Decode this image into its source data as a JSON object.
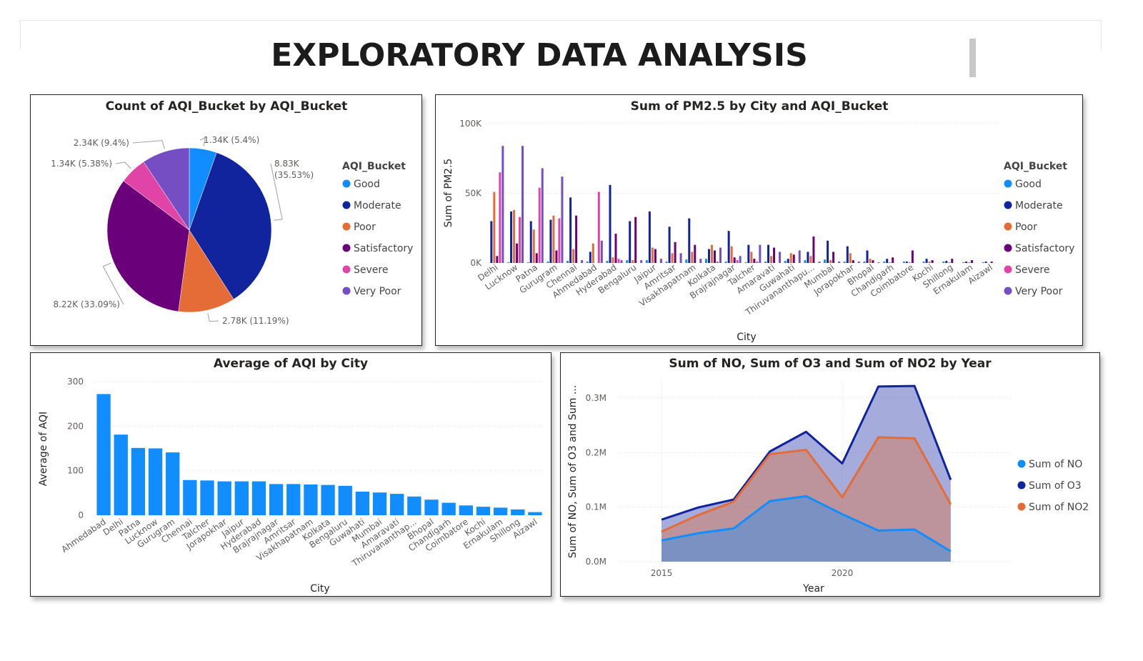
{
  "page": {
    "title": "EXPLORATORY DATA ANALYSIS"
  },
  "colors": {
    "good": "#118DFF",
    "moderate": "#12239E",
    "poor": "#E66C37",
    "satisfactory": "#6B007B",
    "severe": "#E044A7",
    "very_poor": "#744EC2",
    "bar": "#118DFF",
    "no": "#118DFF",
    "o3": "#12239E",
    "no2": "#E66C37"
  },
  "chart_data": [
    {
      "type": "pie",
      "title": "Count of AQI_Bucket by AQI_Bucket",
      "legend_title": "AQI_Bucket",
      "legend_position": "right",
      "slices": [
        {
          "name": "Good",
          "value": 1341,
          "label": "1.34K (5.4%)",
          "color_key": "good"
        },
        {
          "name": "Moderate",
          "value": 8829,
          "label": "8.83K (35.53%)",
          "color_key": "moderate"
        },
        {
          "name": "Poor",
          "value": 2781,
          "label": "2.78K (11.19%)",
          "color_key": "poor"
        },
        {
          "name": "Satisfactory",
          "value": 8224,
          "label": "8.22K (33.09%)",
          "color_key": "satisfactory"
        },
        {
          "name": "Severe",
          "value": 1338,
          "label": "1.34K (5.38%)",
          "color_key": "severe"
        },
        {
          "name": "Very Poor",
          "value": 2337,
          "label": "2.34K (9.4%)",
          "color_key": "very_poor"
        }
      ]
    },
    {
      "type": "bar",
      "title": "Sum of PM2.5 by City and AQI_Bucket",
      "xlabel": "City",
      "ylabel": "Sum of PM2.5",
      "ylim": [
        0,
        100000
      ],
      "yticks": [
        {
          "v": 0,
          "t": "0K"
        },
        {
          "v": 50000,
          "t": "50K"
        },
        {
          "v": 100000,
          "t": "100K"
        }
      ],
      "legend_title": "AQI_Bucket",
      "legend_position": "right",
      "grid": true,
      "categories": [
        "Delhi",
        "Lucknow",
        "Patna",
        "Gurugram",
        "Chennai",
        "Ahmedabad",
        "Hyderabad",
        "Bengaluru",
        "Jaipur",
        "Amritsar",
        "Visakhapatnam",
        "Kolkata",
        "Brajrajnagar",
        "Talcher",
        "Amaravati",
        "Guwahati",
        "Thiruvananthapu...",
        "Mumbai",
        "Jorapokhar",
        "Bhopal",
        "Chandigarh",
        "Coimbatore",
        "Kochi",
        "Shillong",
        "Ernakulam",
        "Aizawl"
      ],
      "series": [
        {
          "name": "Good",
          "color_key": "good",
          "values": [
            0,
            500,
            500,
            1000,
            1500,
            1000,
            1500,
            2000,
            2000,
            1000,
            2500,
            3000,
            1000,
            500,
            1000,
            1500,
            2000,
            2500,
            1000,
            1000,
            1000,
            1000,
            1000,
            1000,
            500,
            500
          ]
        },
        {
          "name": "Moderate",
          "color_key": "moderate",
          "values": [
            30000,
            37000,
            30000,
            31000,
            47000,
            8000,
            56000,
            30000,
            37000,
            26000,
            32000,
            10000,
            23000,
            13000,
            13000,
            3000,
            8000,
            16000,
            12000,
            9000,
            3000,
            1000,
            3000,
            1500,
            1000,
            1000
          ]
        },
        {
          "name": "Poor",
          "color_key": "poor",
          "values": [
            51000,
            38000,
            24000,
            34000,
            10000,
            14000,
            4000,
            2000,
            11000,
            7000,
            8000,
            13000,
            12000,
            8000,
            5000,
            7000,
            5000,
            2000,
            7000,
            3000,
            500,
            500,
            1000,
            500,
            500,
            0
          ]
        },
        {
          "name": "Satisfactory",
          "color_key": "satisfactory",
          "values": [
            5000,
            14000,
            7000,
            9000,
            34000,
            0,
            21000,
            33000,
            10000,
            15000,
            13000,
            9000,
            4000,
            3000,
            11000,
            6000,
            19000,
            8000,
            2000,
            2000,
            4000,
            9000,
            2000,
            3000,
            2000,
            1000
          ]
        },
        {
          "name": "Severe",
          "color_key": "severe",
          "values": [
            65000,
            33000,
            54000,
            32000,
            0,
            51000,
            3000,
            0,
            0,
            0,
            0,
            1000,
            2000,
            1000,
            0,
            0,
            0,
            0,
            0,
            0,
            0,
            0,
            0,
            0,
            0,
            0
          ]
        },
        {
          "name": "Very Poor",
          "color_key": "very_poor",
          "values": [
            84000,
            84000,
            68000,
            62000,
            2000,
            16000,
            2000,
            2000,
            3000,
            7000,
            3000,
            11000,
            5000,
            13000,
            8000,
            9000,
            1000,
            1000,
            1000,
            500,
            0,
            0,
            0,
            0,
            0,
            0
          ]
        }
      ]
    },
    {
      "type": "bar",
      "title": "Average of AQI by City",
      "xlabel": "City",
      "ylabel": "Average of AQI",
      "ylim": [
        0,
        300
      ],
      "yticks": [
        {
          "v": 0,
          "t": "0"
        },
        {
          "v": 100,
          "t": "100"
        },
        {
          "v": 200,
          "t": "200"
        },
        {
          "v": 300,
          "t": "300"
        }
      ],
      "grid": true,
      "categories": [
        "Ahmedabad",
        "Delhi",
        "Patna",
        "Lucknow",
        "Gurugram",
        "Chennai",
        "Talcher",
        "Jorapokhar",
        "Jaipur",
        "Hyderabad",
        "Brajrajnagar",
        "Amritsar",
        "Visakhapatnam",
        "Kolkata",
        "Bengaluru",
        "Guwahati",
        "Mumbai",
        "Amaravati",
        "Thiruvananthap...",
        "Bhopal",
        "Chandigarh",
        "Coimbatore",
        "Kochi",
        "Ernakulam",
        "Shillong",
        "Aizawl"
      ],
      "values": [
        272,
        181,
        151,
        150,
        141,
        79,
        78,
        76,
        76,
        76,
        70,
        70,
        69,
        68,
        66,
        53,
        51,
        48,
        42,
        35,
        28,
        22,
        19,
        17,
        13,
        7
      ]
    },
    {
      "type": "area",
      "title": "Sum of NO, Sum of O3 and Sum of NO2 by Year",
      "xlabel": "Year",
      "ylabel": "Sum of NO, Sum of O3 and Sum ...",
      "ylim": [
        0,
        330000
      ],
      "xlim": [
        2015,
        2023
      ],
      "xticks": [
        {
          "v": 2015,
          "t": "2015"
        },
        {
          "v": 2020,
          "t": "2020"
        }
      ],
      "yticks": [
        {
          "v": 0,
          "t": "0.0M"
        },
        {
          "v": 100000,
          "t": "0.1M"
        },
        {
          "v": 200000,
          "t": "0.2M"
        },
        {
          "v": 300000,
          "t": "0.3M"
        }
      ],
      "legend_position": "right",
      "grid": true,
      "x": [
        2015,
        2016,
        2017,
        2018,
        2019,
        2020,
        2021,
        2022,
        2023
      ],
      "series": [
        {
          "name": "Sum of O3",
          "color_key": "o3",
          "values": [
            77000,
            99000,
            114000,
            202000,
            238000,
            180000,
            321000,
            322000,
            150000
          ]
        },
        {
          "name": "Sum of NO2",
          "color_key": "no2",
          "values": [
            55000,
            85000,
            110000,
            197000,
            205000,
            118000,
            228000,
            226000,
            105000
          ]
        },
        {
          "name": "Sum of NO",
          "color_key": "no",
          "values": [
            39000,
            52000,
            61000,
            111000,
            120000,
            87000,
            57000,
            59000,
            19000
          ]
        }
      ],
      "legend": [
        "Sum of NO",
        "Sum of O3",
        "Sum of NO2"
      ]
    }
  ]
}
